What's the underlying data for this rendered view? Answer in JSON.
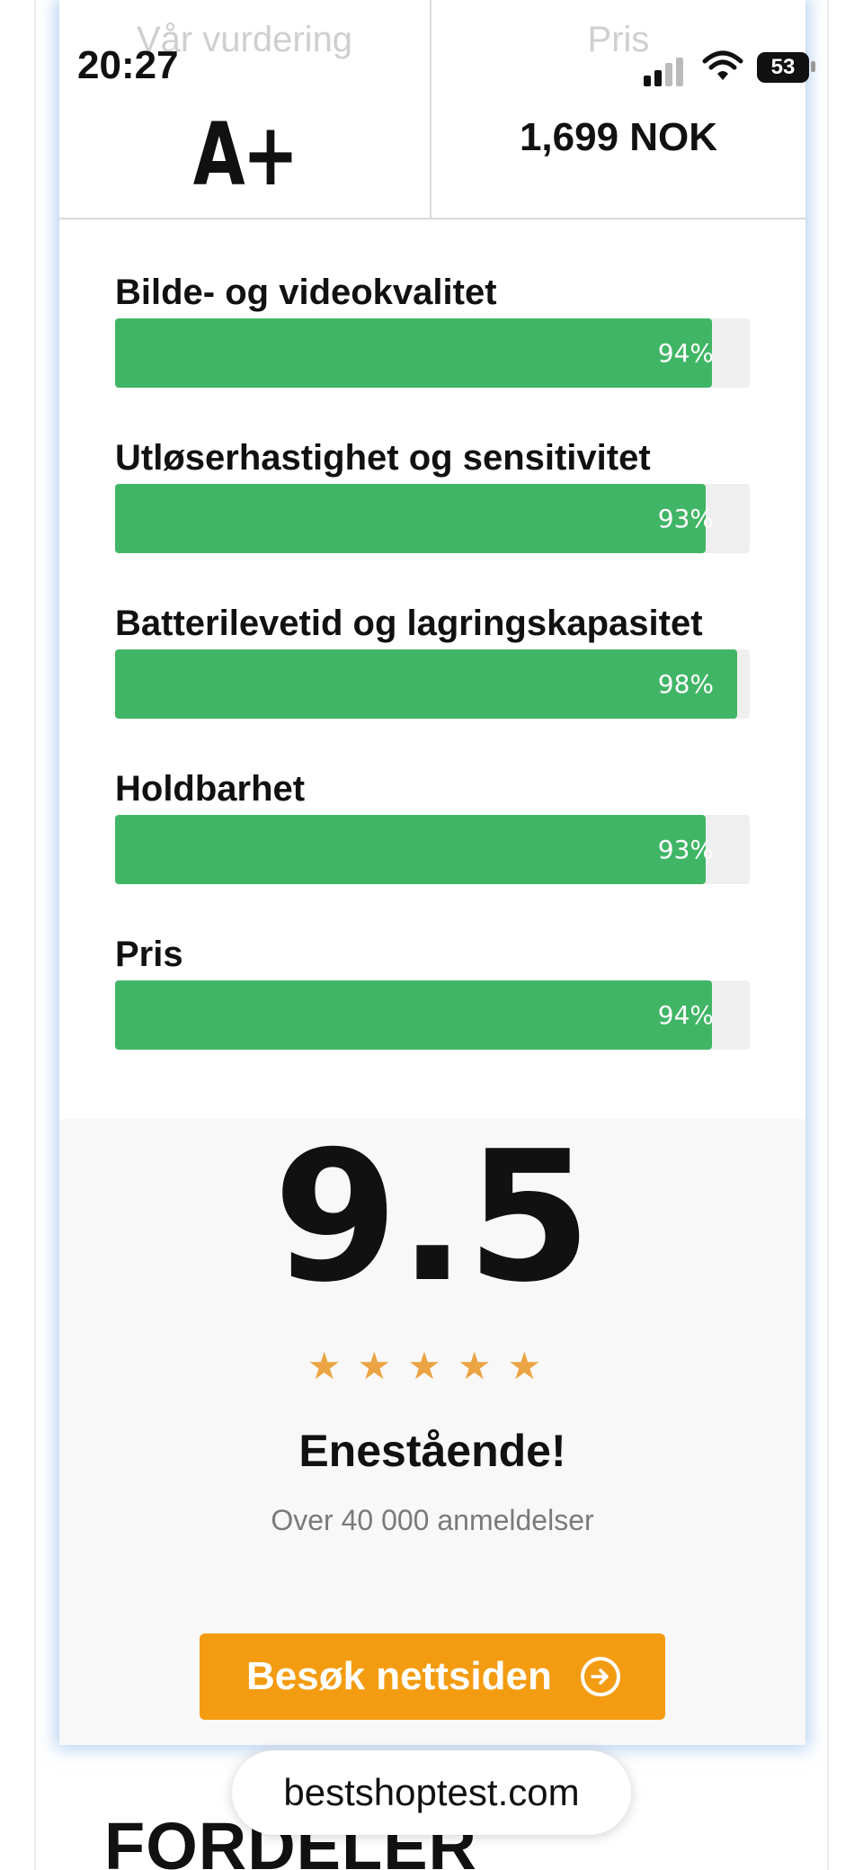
{
  "status_bar": {
    "time": "20:27",
    "battery": "53"
  },
  "header": {
    "rating_label": "Vår vurdering",
    "rating_value": "A+",
    "price_label": "Pris",
    "price_value": "1,699 NOK"
  },
  "ratings": [
    {
      "label": "Bilde- og videokvalitet",
      "percent": 94,
      "percent_text": "94%"
    },
    {
      "label": "Utløserhastighet og sensitivitet",
      "percent": 93,
      "percent_text": "93%"
    },
    {
      "label": "Batterilevetid og lagringskapasitet",
      "percent": 98,
      "percent_text": "98%"
    },
    {
      "label": "Holdbarhet",
      "percent": 93,
      "percent_text": "93%"
    },
    {
      "label": "Pris",
      "percent": 94,
      "percent_text": "94%"
    }
  ],
  "score": {
    "value": "9.5",
    "stars": 4.5,
    "stars_max": 5,
    "verdict": "Enestående!",
    "reviews": "Over 40 000 anmeldelser"
  },
  "cta": {
    "label": "Besøk nettsiden",
    "icon": "arrow-circle-right-icon"
  },
  "browser": {
    "url": "bestshoptest.com"
  },
  "next_section": {
    "title": "FORDELER"
  },
  "colors": {
    "bar": "#41b566",
    "track": "#efefef",
    "star": "#eba443",
    "cta": "#f39c12"
  }
}
